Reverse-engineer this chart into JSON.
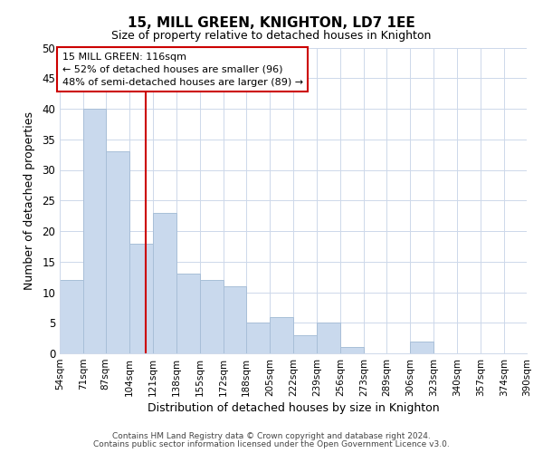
{
  "title": "15, MILL GREEN, KNIGHTON, LD7 1EE",
  "subtitle": "Size of property relative to detached houses in Knighton",
  "xlabel": "Distribution of detached houses by size in Knighton",
  "ylabel": "Number of detached properties",
  "bar_edges": [
    54,
    71,
    87,
    104,
    121,
    138,
    155,
    172,
    188,
    205,
    222,
    239,
    256,
    273,
    289,
    306,
    323,
    340,
    357,
    374,
    390
  ],
  "bar_heights": [
    12,
    40,
    33,
    18,
    23,
    13,
    12,
    11,
    5,
    6,
    3,
    5,
    1,
    0,
    0,
    2,
    0,
    0,
    0,
    0
  ],
  "bar_color": "#c9d9ed",
  "bar_edgecolor": "#a8bfd8",
  "reference_line_x": 116,
  "reference_line_color": "#cc0000",
  "annotation_line1": "15 MILL GREEN: 116sqm",
  "annotation_line2": "← 52% of detached houses are smaller (96)",
  "annotation_line3": "48% of semi-detached houses are larger (89) →",
  "annotation_box_color": "white",
  "annotation_box_edgecolor": "#cc0000",
  "ylim": [
    0,
    50
  ],
  "yticks": [
    0,
    5,
    10,
    15,
    20,
    25,
    30,
    35,
    40,
    45,
    50
  ],
  "tick_labels": [
    "54sqm",
    "71sqm",
    "87sqm",
    "104sqm",
    "121sqm",
    "138sqm",
    "155sqm",
    "172sqm",
    "188sqm",
    "205sqm",
    "222sqm",
    "239sqm",
    "256sqm",
    "273sqm",
    "289sqm",
    "306sqm",
    "323sqm",
    "340sqm",
    "357sqm",
    "374sqm",
    "390sqm"
  ],
  "footer_line1": "Contains HM Land Registry data © Crown copyright and database right 2024.",
  "footer_line2": "Contains public sector information licensed under the Open Government Licence v3.0.",
  "background_color": "#ffffff",
  "grid_color": "#cdd8ea"
}
